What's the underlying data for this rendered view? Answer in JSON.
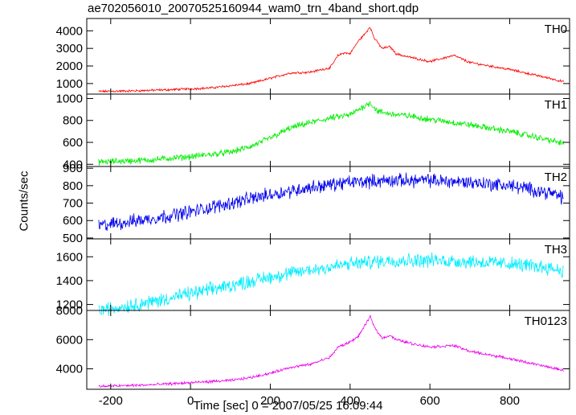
{
  "chart_data": {
    "type": "line",
    "title": "ae702056010_20070525160944_wam0_trn_4band_short.qdp",
    "xlabel": "Time [sec] 0 = 2007/05/25 16:09:44",
    "ylabel": "Counts/sec",
    "xlim": [
      -260,
      950
    ],
    "x_ticks": [
      -200,
      0,
      200,
      400,
      600,
      800
    ],
    "panels": [
      {
        "name": "TH0",
        "color": "#ff0000",
        "ylim": [
          400,
          4700
        ],
        "y_ticks": [
          1000,
          2000,
          3000,
          4000
        ],
        "x": [
          -230,
          -150,
          -50,
          50,
          150,
          200,
          250,
          300,
          350,
          370,
          385,
          400,
          420,
          440,
          450,
          460,
          480,
          500,
          515,
          530,
          560,
          600,
          660,
          700,
          800,
          900,
          935
        ],
        "y": [
          550,
          580,
          650,
          750,
          1000,
          1300,
          1600,
          1650,
          1900,
          2600,
          2750,
          2700,
          3400,
          3900,
          4250,
          3600,
          3000,
          3100,
          2700,
          2600,
          2450,
          2250,
          2600,
          2200,
          1800,
          1300,
          1100
        ],
        "noise": 50
      },
      {
        "name": "TH1",
        "color": "#00ee00",
        "ylim": [
          380,
          1040
        ],
        "y_ticks": [
          400,
          600,
          800,
          1000
        ],
        "x": [
          -230,
          -100,
          0,
          100,
          150,
          200,
          250,
          300,
          350,
          400,
          440,
          450,
          470,
          500,
          550,
          600,
          700,
          800,
          900,
          935
        ],
        "y": [
          420,
          440,
          470,
          510,
          560,
          640,
          730,
          780,
          820,
          850,
          940,
          960,
          880,
          860,
          840,
          810,
          760,
          700,
          620,
          590
        ],
        "noise": 22
      },
      {
        "name": "TH2",
        "color": "#0000ee",
        "ylim": [
          495,
          910
        ],
        "y_ticks": [
          500,
          600,
          700,
          800,
          900
        ],
        "x": [
          -230,
          -100,
          0,
          100,
          200,
          300,
          400,
          500,
          600,
          700,
          800,
          900,
          935
        ],
        "y": [
          570,
          610,
          650,
          700,
          750,
          790,
          820,
          830,
          830,
          820,
          800,
          760,
          730
        ],
        "noise": 30
      },
      {
        "name": "TH3",
        "color": "#00eeff",
        "ylim": [
          1150,
          1750
        ],
        "y_ticks": [
          1200,
          1400,
          1600
        ],
        "x": [
          -230,
          -100,
          0,
          100,
          200,
          300,
          400,
          500,
          600,
          700,
          800,
          900,
          935
        ],
        "y": [
          1150,
          1220,
          1290,
          1360,
          1430,
          1490,
          1540,
          1570,
          1570,
          1560,
          1540,
          1510,
          1480
        ],
        "noise": 45
      },
      {
        "name": "TH0123",
        "color": "#ee00ee",
        "ylim": [
          2600,
          8000
        ],
        "y_ticks": [
          4000,
          6000,
          8000
        ],
        "x": [
          -230,
          -100,
          0,
          100,
          150,
          200,
          250,
          300,
          350,
          370,
          390,
          420,
          440,
          450,
          460,
          480,
          500,
          515,
          530,
          560,
          600,
          660,
          700,
          800,
          900,
          935
        ],
        "y": [
          2800,
          2900,
          3050,
          3200,
          3400,
          3700,
          4100,
          4300,
          4800,
          5500,
          5700,
          6200,
          7100,
          7600,
          6900,
          6100,
          6300,
          6000,
          5900,
          5700,
          5500,
          5600,
          5200,
          4700,
          4100,
          3900
        ],
        "noise": 70
      }
    ]
  }
}
